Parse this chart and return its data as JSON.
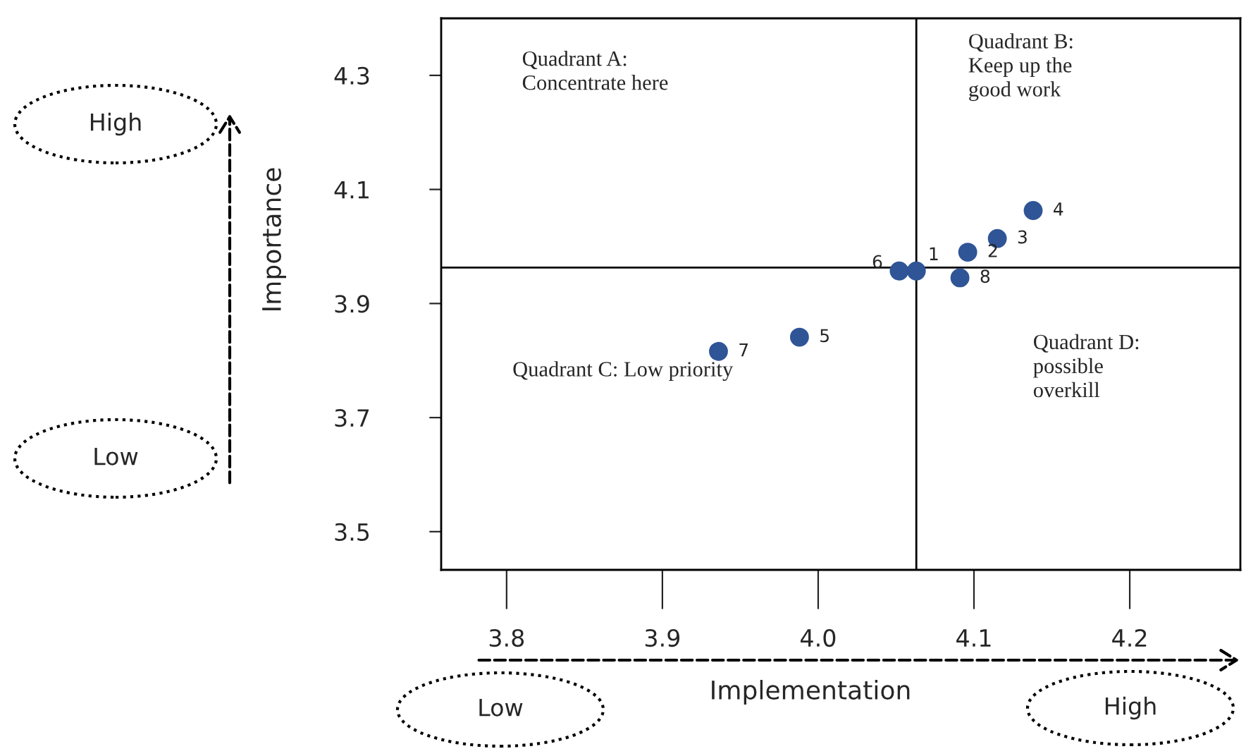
{
  "chart_data": {
    "type": "scatter",
    "xlabel": "Implementation",
    "ylabel": "Importance",
    "x": [
      4.063,
      4.096,
      4.115,
      4.138,
      3.988,
      4.052,
      3.936,
      4.091
    ],
    "series": [
      {
        "color": "#2f5597",
        "values": [
          3.957,
          3.99,
          4.014,
          4.063,
          3.841,
          3.957,
          3.816,
          3.945
        ]
      }
    ],
    "marker": "circle",
    "grid": false,
    "xlim": [
      3.758,
      4.271
    ],
    "xticks": [
      {
        "value": 3.8,
        "label": "3.8"
      },
      {
        "value": 3.9,
        "label": "3.9"
      },
      {
        "value": 4.0,
        "label": "4.0"
      },
      {
        "value": 4.1,
        "label": "4.1"
      },
      {
        "value": 4.2,
        "label": "4.2"
      }
    ],
    "ylim": [
      3.433,
      4.4
    ],
    "yticks": [
      {
        "value": 3.5,
        "label": "3.5"
      },
      {
        "value": 3.7,
        "label": "3.7"
      },
      {
        "value": 3.9,
        "label": "3.9"
      },
      {
        "value": 4.1,
        "label": "4.1"
      },
      {
        "value": 4.3,
        "label": "4.3"
      }
    ],
    "ref_lines": [
      {
        "axis": "x",
        "value": 4.063,
        "color": "#000000"
      },
      {
        "axis": "y",
        "value": 3.963,
        "color": "#000000"
      }
    ],
    "annotations": [
      "Quadrant A:\nConcentrate here",
      "Quadrant B:\nKeep up the\ngood work",
      "Quadrant C: Low priority",
      "Quadrant D:\npossible\noverkill",
      "High",
      "Low",
      "Low",
      "High",
      {
        "text": "1",
        "x": 4.063,
        "y": 3.957
      },
      {
        "text": "2",
        "x": 4.096,
        "y": 3.99
      },
      {
        "text": "3",
        "x": 4.115,
        "y": 4.014
      },
      {
        "text": "4",
        "x": 4.138,
        "y": 4.063
      },
      {
        "text": "5",
        "x": 3.988,
        "y": 3.841
      },
      {
        "text": "6",
        "x": 4.052,
        "y": 3.957
      },
      {
        "text": "7",
        "x": 3.936,
        "y": 3.816
      },
      {
        "text": "8",
        "x": 4.091,
        "y": 3.945
      }
    ]
  }
}
